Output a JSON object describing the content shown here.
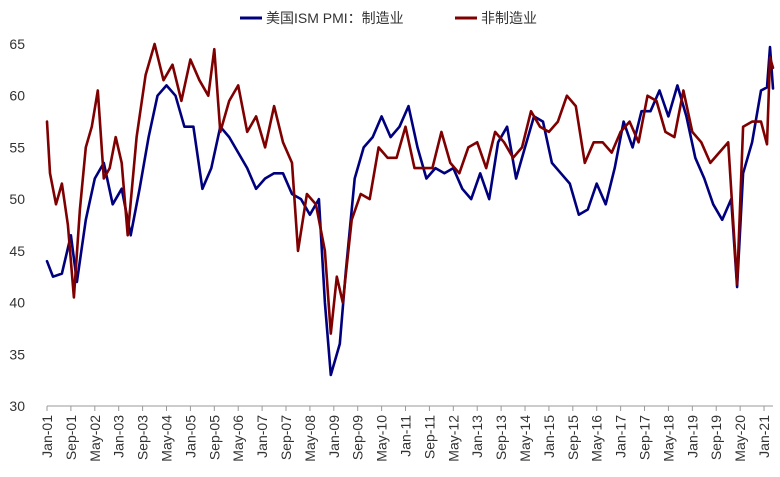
{
  "chart_data": {
    "type": "line",
    "title": "",
    "xlabel": "",
    "ylabel": "",
    "ylim": [
      30,
      65
    ],
    "yticks": [
      30,
      35,
      40,
      45,
      50,
      55,
      60,
      65
    ],
    "x_range": [
      "2001-01",
      "2021-04"
    ],
    "x_tick_labels": [
      "Jan-01",
      "Sep-01",
      "May-02",
      "Jan-03",
      "Sep-03",
      "May-04",
      "Jan-05",
      "Sep-05",
      "May-06",
      "Jan-07",
      "Sep-07",
      "May-08",
      "Jan-09",
      "Sep-09",
      "May-10",
      "Jan-11",
      "Sep-11",
      "May-12",
      "Jan-13",
      "Sep-13",
      "May-14",
      "Jan-15",
      "Sep-15",
      "May-16",
      "Jan-17",
      "Sep-17",
      "May-18",
      "Jan-19",
      "Sep-19",
      "May-20",
      "Jan-21"
    ],
    "grid": false,
    "legend_position": "top",
    "series": [
      {
        "name": "美国ISM PMI：制造业",
        "color": "#00007f",
        "points": [
          [
            "2001-01",
            44.0
          ],
          [
            "2001-03",
            42.5
          ],
          [
            "2001-06",
            42.8
          ],
          [
            "2001-09",
            46.5
          ],
          [
            "2001-11",
            42.0
          ],
          [
            "2002-02",
            48.0
          ],
          [
            "2002-05",
            52.0
          ],
          [
            "2002-08",
            53.5
          ],
          [
            "2002-11",
            49.5
          ],
          [
            "2003-02",
            51.0
          ],
          [
            "2003-05",
            46.5
          ],
          [
            "2003-08",
            51.0
          ],
          [
            "2003-11",
            56.0
          ],
          [
            "2004-02",
            60.0
          ],
          [
            "2004-05",
            61.0
          ],
          [
            "2004-08",
            60.0
          ],
          [
            "2004-11",
            57.0
          ],
          [
            "2005-02",
            57.0
          ],
          [
            "2005-05",
            51.0
          ],
          [
            "2005-08",
            53.0
          ],
          [
            "2005-11",
            57.0
          ],
          [
            "2006-02",
            56.0
          ],
          [
            "2006-05",
            54.5
          ],
          [
            "2006-08",
            53.0
          ],
          [
            "2006-11",
            51.0
          ],
          [
            "2007-02",
            52.0
          ],
          [
            "2007-05",
            52.5
          ],
          [
            "2007-08",
            52.5
          ],
          [
            "2007-11",
            50.5
          ],
          [
            "2008-02",
            50.0
          ],
          [
            "2008-05",
            48.5
          ],
          [
            "2008-08",
            50.0
          ],
          [
            "2008-10",
            40.0
          ],
          [
            "2008-12",
            33.0
          ],
          [
            "2009-03",
            36.0
          ],
          [
            "2009-05",
            43.0
          ],
          [
            "2009-08",
            52.0
          ],
          [
            "2009-11",
            55.0
          ],
          [
            "2010-02",
            56.0
          ],
          [
            "2010-05",
            58.0
          ],
          [
            "2010-08",
            56.0
          ],
          [
            "2010-11",
            57.0
          ],
          [
            "2011-02",
            59.0
          ],
          [
            "2011-05",
            55.0
          ],
          [
            "2011-08",
            52.0
          ],
          [
            "2011-11",
            53.0
          ],
          [
            "2012-02",
            52.5
          ],
          [
            "2012-05",
            53.0
          ],
          [
            "2012-08",
            51.0
          ],
          [
            "2012-11",
            50.0
          ],
          [
            "2013-02",
            52.5
          ],
          [
            "2013-05",
            50.0
          ],
          [
            "2013-08",
            55.5
          ],
          [
            "2013-11",
            57.0
          ],
          [
            "2014-02",
            52.0
          ],
          [
            "2014-05",
            55.0
          ],
          [
            "2014-08",
            58.0
          ],
          [
            "2014-11",
            57.5
          ],
          [
            "2015-02",
            53.5
          ],
          [
            "2015-05",
            52.5
          ],
          [
            "2015-08",
            51.5
          ],
          [
            "2015-11",
            48.5
          ],
          [
            "2016-02",
            49.0
          ],
          [
            "2016-05",
            51.5
          ],
          [
            "2016-08",
            49.5
          ],
          [
            "2016-11",
            53.0
          ],
          [
            "2017-02",
            57.5
          ],
          [
            "2017-05",
            55.0
          ],
          [
            "2017-08",
            58.5
          ],
          [
            "2017-11",
            58.5
          ],
          [
            "2018-02",
            60.5
          ],
          [
            "2018-05",
            58.0
          ],
          [
            "2018-08",
            61.0
          ],
          [
            "2018-11",
            58.0
          ],
          [
            "2019-02",
            54.0
          ],
          [
            "2019-05",
            52.0
          ],
          [
            "2019-08",
            49.5
          ],
          [
            "2019-11",
            48.0
          ],
          [
            "2020-02",
            50.0
          ],
          [
            "2020-04",
            41.5
          ],
          [
            "2020-06",
            52.5
          ],
          [
            "2020-09",
            55.5
          ],
          [
            "2020-12",
            60.5
          ],
          [
            "2021-02",
            60.8
          ],
          [
            "2021-03",
            64.7
          ],
          [
            "2021-04",
            60.7
          ]
        ]
      },
      {
        "name": "非制造业",
        "color": "#7f0000",
        "points": [
          [
            "2001-01",
            57.5
          ],
          [
            "2001-02",
            52.5
          ],
          [
            "2001-04",
            49.5
          ],
          [
            "2001-06",
            51.5
          ],
          [
            "2001-08",
            47.5
          ],
          [
            "2001-10",
            40.5
          ],
          [
            "2001-12",
            49.0
          ],
          [
            "2002-02",
            55.0
          ],
          [
            "2002-04",
            57.0
          ],
          [
            "2002-06",
            60.5
          ],
          [
            "2002-08",
            52.0
          ],
          [
            "2002-10",
            53.0
          ],
          [
            "2002-12",
            56.0
          ],
          [
            "2003-02",
            53.5
          ],
          [
            "2003-04",
            46.5
          ],
          [
            "2003-07",
            56.0
          ],
          [
            "2003-10",
            62.0
          ],
          [
            "2004-01",
            65.0
          ],
          [
            "2004-04",
            61.5
          ],
          [
            "2004-07",
            63.0
          ],
          [
            "2004-10",
            59.5
          ],
          [
            "2005-01",
            63.5
          ],
          [
            "2005-04",
            61.5
          ],
          [
            "2005-07",
            60.0
          ],
          [
            "2005-09",
            64.5
          ],
          [
            "2005-11",
            56.5
          ],
          [
            "2006-02",
            59.5
          ],
          [
            "2006-05",
            61.0
          ],
          [
            "2006-08",
            56.5
          ],
          [
            "2006-11",
            58.0
          ],
          [
            "2007-02",
            55.0
          ],
          [
            "2007-05",
            59.0
          ],
          [
            "2007-08",
            55.5
          ],
          [
            "2007-11",
            53.5
          ],
          [
            "2008-01",
            45.0
          ],
          [
            "2008-04",
            50.5
          ],
          [
            "2008-07",
            49.5
          ],
          [
            "2008-10",
            45.0
          ],
          [
            "2008-12",
            37.0
          ],
          [
            "2009-02",
            42.5
          ],
          [
            "2009-04",
            40.0
          ],
          [
            "2009-07",
            48.0
          ],
          [
            "2009-10",
            50.5
          ],
          [
            "2010-01",
            50.0
          ],
          [
            "2010-04",
            55.0
          ],
          [
            "2010-07",
            54.0
          ],
          [
            "2010-10",
            54.0
          ],
          [
            "2011-01",
            57.0
          ],
          [
            "2011-04",
            53.0
          ],
          [
            "2011-07",
            53.0
          ],
          [
            "2011-10",
            53.0
          ],
          [
            "2012-01",
            56.5
          ],
          [
            "2012-04",
            53.5
          ],
          [
            "2012-07",
            52.5
          ],
          [
            "2012-10",
            55.0
          ],
          [
            "2013-01",
            55.5
          ],
          [
            "2013-04",
            53.0
          ],
          [
            "2013-07",
            56.5
          ],
          [
            "2013-10",
            55.5
          ],
          [
            "2014-01",
            54.0
          ],
          [
            "2014-04",
            55.0
          ],
          [
            "2014-07",
            58.5
          ],
          [
            "2014-10",
            57.0
          ],
          [
            "2015-01",
            56.5
          ],
          [
            "2015-04",
            57.5
          ],
          [
            "2015-07",
            60.0
          ],
          [
            "2015-10",
            59.0
          ],
          [
            "2016-01",
            53.5
          ],
          [
            "2016-04",
            55.5
          ],
          [
            "2016-07",
            55.5
          ],
          [
            "2016-10",
            54.5
          ],
          [
            "2017-01",
            56.5
          ],
          [
            "2017-04",
            57.5
          ],
          [
            "2017-07",
            55.5
          ],
          [
            "2017-10",
            60.0
          ],
          [
            "2018-01",
            59.5
          ],
          [
            "2018-04",
            56.5
          ],
          [
            "2018-07",
            56.0
          ],
          [
            "2018-10",
            60.5
          ],
          [
            "2019-01",
            56.5
          ],
          [
            "2019-04",
            55.5
          ],
          [
            "2019-07",
            53.5
          ],
          [
            "2019-10",
            54.5
          ],
          [
            "2020-01",
            55.5
          ],
          [
            "2020-04",
            41.8
          ],
          [
            "2020-06",
            57.0
          ],
          [
            "2020-09",
            57.5
          ],
          [
            "2020-12",
            57.5
          ],
          [
            "2021-02",
            55.3
          ],
          [
            "2021-03",
            63.7
          ],
          [
            "2021-04",
            62.7
          ]
        ]
      }
    ]
  }
}
